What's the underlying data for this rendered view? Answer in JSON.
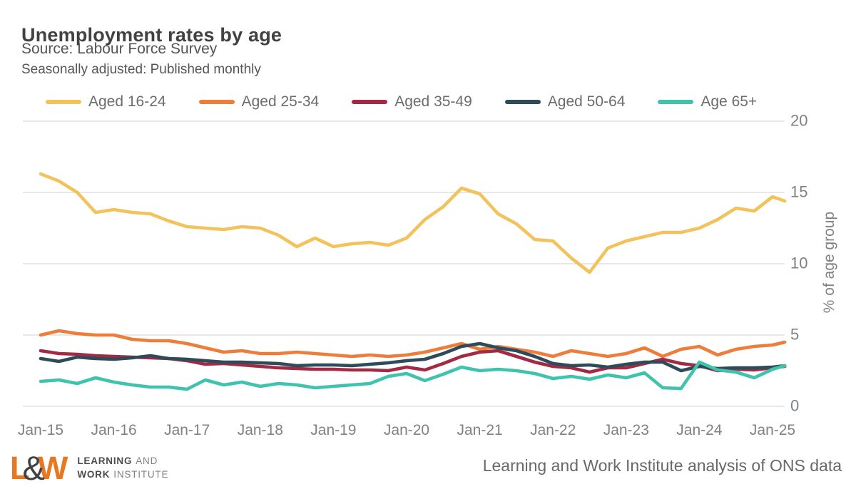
{
  "header": {
    "title": "Unemployment rates by age",
    "source": "Source: Labour Force Survey",
    "note": "Seasonally adjusted: Published monthly"
  },
  "chart_data": {
    "type": "line",
    "title": "Unemployment rates by age",
    "xlabel": "",
    "ylabel": "% of age group",
    "ylim": [
      0,
      20
    ],
    "y_ticks": [
      20,
      15,
      10,
      5,
      0
    ],
    "x_ticks": [
      "Jan-15",
      "Jan-16",
      "Jan-17",
      "Jan-18",
      "Jan-19",
      "Jan-20",
      "Jan-21",
      "Jan-22",
      "Jan-23",
      "Jan-24",
      "Jan-25"
    ],
    "grid": "horizontal",
    "gridline_color": "#dbdbdb",
    "legend_position": "top",
    "x": [
      "Jan-15",
      "Apr-15",
      "Jul-15",
      "Oct-15",
      "Jan-16",
      "Apr-16",
      "Jul-16",
      "Oct-16",
      "Jan-17",
      "Apr-17",
      "Jul-17",
      "Oct-17",
      "Jan-18",
      "Apr-18",
      "Jul-18",
      "Oct-18",
      "Jan-19",
      "Apr-19",
      "Jul-19",
      "Oct-19",
      "Jan-20",
      "Apr-20",
      "Jul-20",
      "Oct-20",
      "Jan-21",
      "Apr-21",
      "Jul-21",
      "Oct-21",
      "Jan-22",
      "Apr-22",
      "Jul-22",
      "Oct-22",
      "Jan-23",
      "Apr-23",
      "Jul-23",
      "Oct-23",
      "Jan-24",
      "Apr-24",
      "Jul-24",
      "Oct-24",
      "Jan-25",
      "Mar-25"
    ],
    "x_month_index": [
      0,
      3,
      6,
      9,
      12,
      15,
      18,
      21,
      24,
      27,
      30,
      33,
      36,
      39,
      42,
      45,
      48,
      51,
      54,
      57,
      60,
      63,
      66,
      69,
      72,
      75,
      78,
      81,
      84,
      87,
      90,
      93,
      96,
      99,
      102,
      105,
      108,
      111,
      114,
      117,
      120,
      122
    ],
    "series": [
      {
        "name": "Aged 16-24",
        "color": "#F2C35C",
        "values": [
          16.3,
          15.8,
          15.0,
          13.6,
          13.8,
          13.6,
          13.5,
          13.0,
          12.6,
          12.5,
          12.4,
          12.6,
          12.5,
          12.0,
          11.2,
          11.8,
          11.2,
          11.4,
          11.5,
          11.3,
          11.8,
          13.1,
          14.0,
          15.3,
          14.9,
          13.5,
          12.8,
          11.7,
          11.6,
          10.4,
          9.4,
          11.1,
          11.6,
          11.9,
          12.2,
          12.2,
          12.5,
          13.1,
          13.9,
          13.7,
          14.7,
          14.4
        ]
      },
      {
        "name": "Aged 25-34",
        "color": "#ED7D3B",
        "values": [
          5.0,
          5.3,
          5.1,
          5.0,
          5.0,
          4.7,
          4.6,
          4.6,
          4.4,
          4.1,
          3.8,
          3.9,
          3.7,
          3.7,
          3.8,
          3.7,
          3.6,
          3.5,
          3.6,
          3.5,
          3.6,
          3.8,
          4.1,
          4.4,
          4.0,
          4.2,
          4.0,
          3.8,
          3.5,
          3.9,
          3.7,
          3.5,
          3.7,
          4.1,
          3.5,
          4.0,
          4.2,
          3.6,
          4.0,
          4.2,
          4.3,
          4.5
        ]
      },
      {
        "name": "Aged 35-49",
        "color": "#A32A45",
        "values": [
          3.9,
          3.7,
          3.65,
          3.55,
          3.5,
          3.45,
          3.4,
          3.35,
          3.2,
          2.95,
          3.0,
          2.9,
          2.8,
          2.7,
          2.65,
          2.6,
          2.6,
          2.55,
          2.55,
          2.5,
          2.75,
          2.55,
          3.0,
          3.5,
          3.8,
          3.9,
          3.5,
          3.1,
          2.8,
          2.7,
          2.4,
          2.7,
          2.7,
          3.0,
          3.3,
          3.0,
          2.85,
          2.5,
          2.6,
          2.55,
          2.7,
          2.8
        ]
      },
      {
        "name": "Aged 50-64",
        "color": "#2E4B59",
        "values": [
          3.35,
          3.15,
          3.45,
          3.35,
          3.3,
          3.4,
          3.55,
          3.35,
          3.3,
          3.2,
          3.1,
          3.1,
          3.05,
          3.0,
          2.85,
          2.9,
          2.9,
          2.85,
          2.95,
          3.05,
          3.2,
          3.3,
          3.7,
          4.2,
          4.4,
          4.1,
          3.9,
          3.5,
          3.0,
          2.85,
          2.9,
          2.75,
          2.95,
          3.1,
          3.1,
          2.5,
          2.8,
          2.65,
          2.7,
          2.7,
          2.75,
          2.85
        ]
      },
      {
        "name": "Age 65+",
        "color": "#3FC3AE",
        "values": [
          1.75,
          1.85,
          1.6,
          2.0,
          1.7,
          1.5,
          1.35,
          1.35,
          1.2,
          1.85,
          1.5,
          1.7,
          1.4,
          1.6,
          1.5,
          1.3,
          1.4,
          1.5,
          1.6,
          2.1,
          2.3,
          1.8,
          2.25,
          2.75,
          2.5,
          2.6,
          2.5,
          2.3,
          1.95,
          2.1,
          1.9,
          2.2,
          2.0,
          2.35,
          1.3,
          1.25,
          3.1,
          2.55,
          2.4,
          2.0,
          2.6,
          2.85
        ]
      }
    ]
  },
  "footer": {
    "logo": {
      "l": "L",
      "amp": "&",
      "w": "W",
      "line1_bold": "LEARNING",
      "line1_rest": "AND",
      "line2_bold": "WORK",
      "line2_rest": "INSTITUTE",
      "orange": "#E87722"
    },
    "credit": "Learning and Work Institute analysis of ONS data"
  }
}
